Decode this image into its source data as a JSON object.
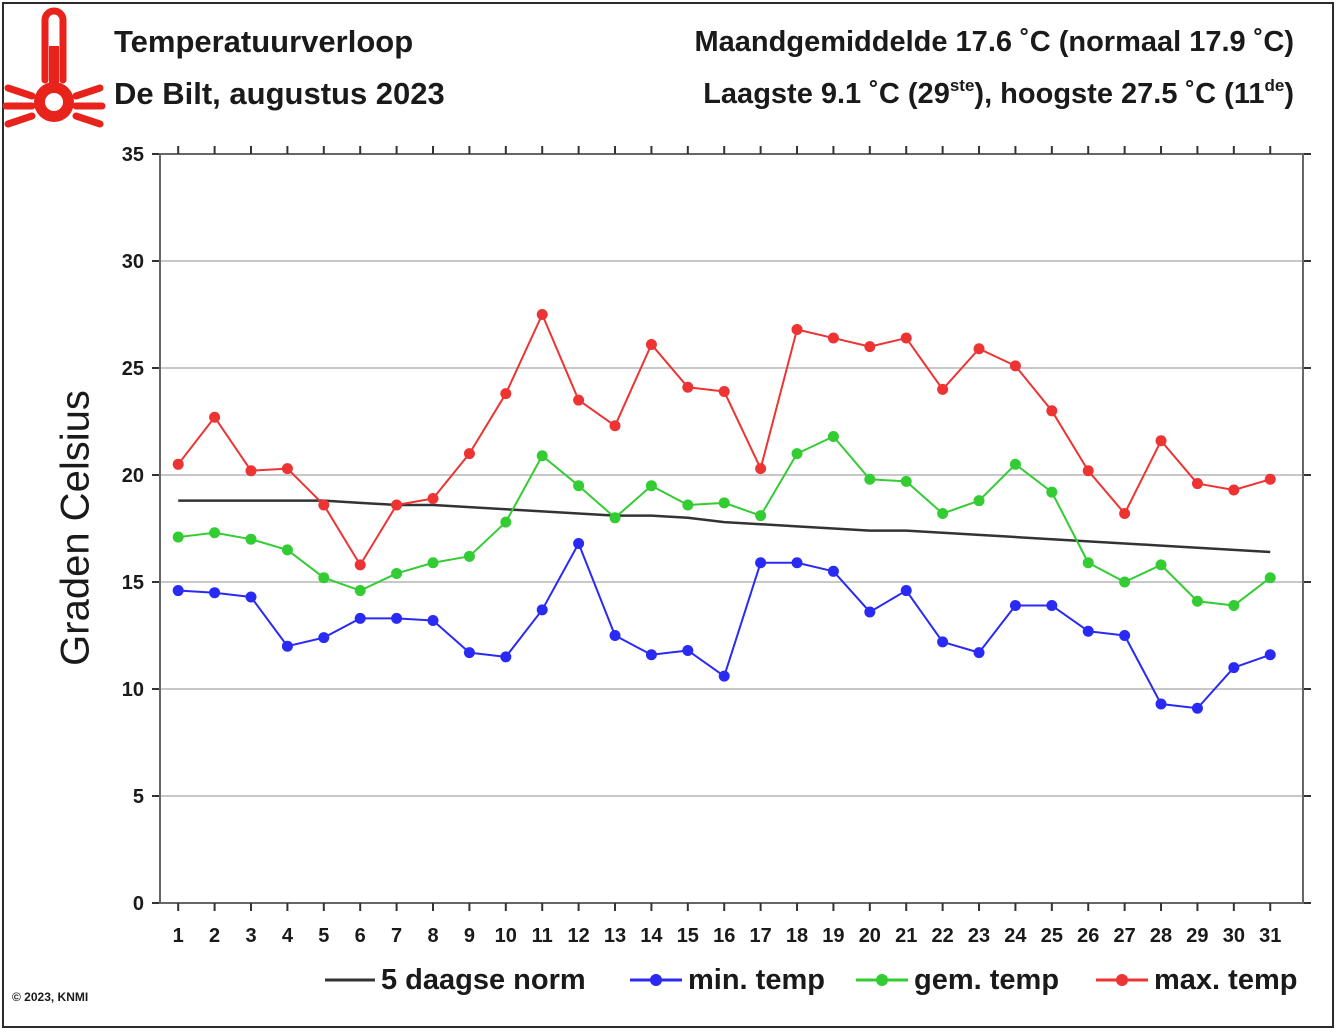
{
  "header": {
    "title_line1": "Temperatuurverloop",
    "title_line2": "De Bilt, augustus 2023",
    "stats_line1": "Maandgemiddelde 17.6 ˚C (normaal 17.9 ˚C)",
    "stats_line2_a": "Laagste 9.1 ˚C (29",
    "stats_line2_sup_a": "ste",
    "stats_line2_b": "), hoogste 27.5 ˚C (11",
    "stats_line2_sup_b": "de",
    "stats_line2_c": ")"
  },
  "icon": "thermometer-icon",
  "colors": {
    "min": "#2a2af5",
    "mean": "#33cc33",
    "max": "#ee3333",
    "norm": "#333333",
    "accent": "#e8231c"
  },
  "copyright": "© 2023, KNMI",
  "chart_data": {
    "type": "line",
    "title": "Temperatuurverloop",
    "xlabel": "",
    "ylabel": "Graden Celsius",
    "xlim": [
      0.5,
      31.9
    ],
    "ylim": [
      0,
      35
    ],
    "yticks": [
      0,
      5,
      10,
      15,
      20,
      25,
      30,
      35
    ],
    "grid": true,
    "legend_position": "bottom",
    "x": [
      1,
      2,
      3,
      4,
      5,
      6,
      7,
      8,
      9,
      10,
      11,
      12,
      13,
      14,
      15,
      16,
      17,
      18,
      19,
      20,
      21,
      22,
      23,
      24,
      25,
      26,
      27,
      28,
      29,
      30,
      31
    ],
    "series": [
      {
        "name": "5 daagse norm",
        "key": "norm",
        "markers": false,
        "values": [
          18.8,
          18.8,
          18.8,
          18.8,
          18.8,
          18.7,
          18.6,
          18.6,
          18.5,
          18.4,
          18.3,
          18.2,
          18.1,
          18.1,
          18.0,
          17.8,
          17.7,
          17.6,
          17.5,
          17.4,
          17.4,
          17.3,
          17.2,
          17.1,
          17.0,
          16.9,
          16.8,
          16.7,
          16.6,
          16.5,
          16.4
        ]
      },
      {
        "name": "min. temp",
        "key": "min",
        "markers": true,
        "values": [
          14.6,
          14.5,
          14.3,
          12.0,
          12.4,
          13.3,
          13.3,
          13.2,
          11.7,
          11.5,
          13.7,
          16.8,
          12.5,
          11.6,
          11.8,
          10.6,
          15.9,
          15.9,
          15.5,
          13.6,
          14.6,
          12.2,
          11.7,
          13.9,
          13.9,
          12.7,
          12.5,
          9.3,
          9.1,
          11.0,
          11.6
        ]
      },
      {
        "name": "gem. temp",
        "key": "mean",
        "markers": true,
        "values": [
          17.1,
          17.3,
          17.0,
          16.5,
          15.2,
          14.6,
          15.4,
          15.9,
          16.2,
          17.8,
          20.9,
          19.5,
          18.0,
          19.5,
          18.6,
          18.7,
          18.1,
          21.0,
          21.8,
          19.8,
          19.7,
          18.2,
          18.8,
          20.5,
          19.2,
          15.9,
          15.0,
          15.8,
          14.1,
          13.9,
          15.2
        ]
      },
      {
        "name": "max. temp",
        "key": "max",
        "markers": true,
        "values": [
          20.5,
          22.7,
          20.2,
          20.3,
          18.6,
          15.8,
          18.6,
          18.9,
          21.0,
          23.8,
          27.5,
          23.5,
          22.3,
          26.1,
          24.1,
          23.9,
          20.3,
          26.8,
          26.4,
          26.0,
          26.4,
          24.0,
          25.9,
          25.1,
          23.0,
          20.2,
          18.2,
          21.6,
          19.6,
          19.3,
          19.8
        ]
      }
    ]
  }
}
